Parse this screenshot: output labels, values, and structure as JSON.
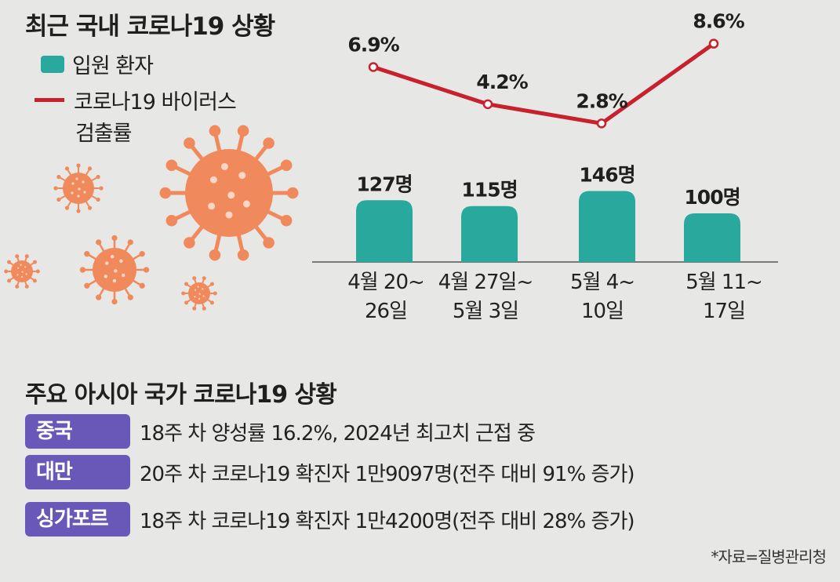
{
  "title": "최근 국내 코로나19 상황",
  "legend": {
    "bar_label": "입원 환자",
    "line_label_line1": "코로나19 바이러스",
    "line_label_line2": "검출률"
  },
  "colors": {
    "bar": "#29a89d",
    "line": "#c8202c",
    "badge": "#6a58b8",
    "virus": "#f08a5d"
  },
  "chart_data": {
    "type": "bar+line",
    "categories": [
      "4월 20~\n26일",
      "4월 27일~\n5월 3일",
      "5월 4~\n10일",
      "5월 11~\n17일"
    ],
    "series": [
      {
        "name": "입원 환자",
        "type": "bar",
        "values": [
          127,
          115,
          146,
          100
        ],
        "unit": "명"
      },
      {
        "name": "코로나19 바이러스 검출률",
        "type": "line",
        "values": [
          6.9,
          4.2,
          2.8,
          8.6
        ],
        "unit": "%"
      }
    ],
    "bar_labels": [
      "127명",
      "115명",
      "146명",
      "100명"
    ],
    "line_labels": [
      "6.9%",
      "4.2%",
      "2.8%",
      "8.6%"
    ]
  },
  "asia": {
    "title": "주요 아시아 국가 코로나19 상황",
    "rows": [
      {
        "country": "중국",
        "text": "18주 차 양성률 16.2%, 2024년 최고치 근접 중"
      },
      {
        "country": "대만",
        "text": "20주 차 코로나19 확진자 1만9097명(전주 대비 91% 증가)"
      },
      {
        "country": "싱가포르",
        "text": "18주 차 코로나19 확진자 1만4200명(전주 대비 28% 증가)"
      }
    ]
  },
  "source": "*자료=질병관리청"
}
